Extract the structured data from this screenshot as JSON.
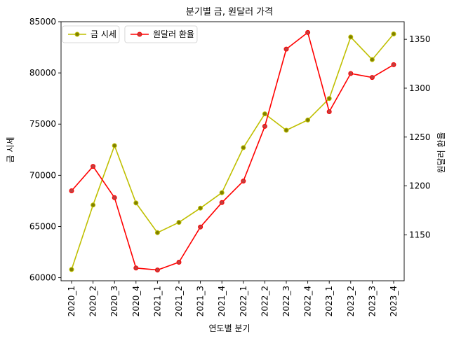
{
  "chart_data": {
    "type": "line",
    "title": "분기별 금, 원달러 가격",
    "xlabel": "연도별 분기",
    "ylabel_left": "금 시세",
    "ylabel_right": "원달러 환율",
    "categories": [
      "2020_1",
      "2020_2",
      "2020_3",
      "2020_4",
      "2021_1",
      "2021_2",
      "2021_3",
      "2021_4",
      "2022_1",
      "2022_2",
      "2022_3",
      "2022_4",
      "2023_1",
      "2023_2",
      "2023_3",
      "2023_4"
    ],
    "series": [
      {
        "name": "금 시세",
        "axis": "left",
        "color": "#bfbf00",
        "marker_color": "#808000",
        "values": [
          60800,
          67100,
          72900,
          67300,
          64400,
          65400,
          66800,
          68300,
          72700,
          76000,
          74400,
          75400,
          77500,
          83500,
          81300,
          83800
        ]
      },
      {
        "name": "원달러 환율",
        "axis": "right",
        "color": "#ff0000",
        "marker_color": "#c04040",
        "values": [
          1195,
          1220,
          1188,
          1116,
          1114,
          1122,
          1158,
          1183,
          1205,
          1261,
          1340,
          1357,
          1276,
          1315,
          1311,
          1324
        ]
      }
    ],
    "ylim_left": [
      59700,
      85000
    ],
    "yticks_left": [
      60000,
      65000,
      70000,
      75000,
      80000,
      85000
    ],
    "ylim_right": [
      1103,
      1368
    ],
    "yticks_right": [
      1150,
      1200,
      1250,
      1300,
      1350
    ],
    "legend": "top-left",
    "grid": false
  }
}
